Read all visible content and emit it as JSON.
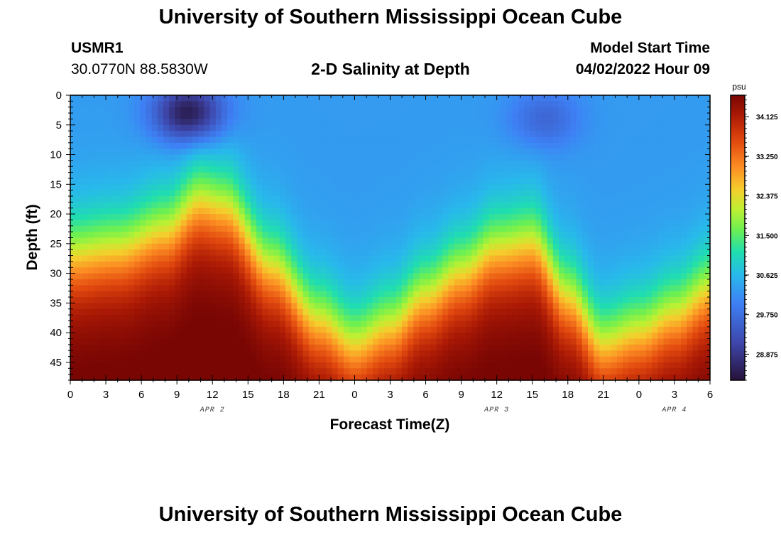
{
  "header": {
    "main_title": "University of Southern Mississippi Ocean Cube",
    "station_id": "USMR1",
    "station_coords": "30.0770N  88.5830W",
    "subtitle": "2-D Salinity at Depth",
    "model_start_label": "Model Start Time",
    "model_start_value": "04/02/2022 Hour 09"
  },
  "footer": {
    "title": "University of Southern Mississippi Ocean Cube"
  },
  "chart_data": {
    "type": "heatmap",
    "title": "2-D Salinity at Depth",
    "xlabel": "Forecast Time(Z)",
    "ylabel": "Depth (ft)",
    "x_range_hours": [
      0,
      54
    ],
    "y_range_ft": [
      0,
      48
    ],
    "y_inverted": true,
    "x_ticks": [
      {
        "hour": 0,
        "label": "0"
      },
      {
        "hour": 3,
        "label": "3"
      },
      {
        "hour": 6,
        "label": "6"
      },
      {
        "hour": 9,
        "label": "9"
      },
      {
        "hour": 12,
        "label": "12"
      },
      {
        "hour": 15,
        "label": "15"
      },
      {
        "hour": 18,
        "label": "18"
      },
      {
        "hour": 21,
        "label": "21"
      },
      {
        "hour": 24,
        "label": "0"
      },
      {
        "hour": 27,
        "label": "3"
      },
      {
        "hour": 30,
        "label": "6"
      },
      {
        "hour": 33,
        "label": "9"
      },
      {
        "hour": 36,
        "label": "12"
      },
      {
        "hour": 39,
        "label": "15"
      },
      {
        "hour": 42,
        "label": "18"
      },
      {
        "hour": 45,
        "label": "21"
      },
      {
        "hour": 48,
        "label": "0"
      },
      {
        "hour": 51,
        "label": "3"
      },
      {
        "hour": 54,
        "label": "6"
      }
    ],
    "date_labels": [
      {
        "hour": 12,
        "label": "APR 2"
      },
      {
        "hour": 36,
        "label": "APR 3"
      },
      {
        "hour": 51,
        "label": "APR 4"
      }
    ],
    "y_ticks": [
      0,
      5,
      10,
      15,
      20,
      25,
      30,
      35,
      40,
      45
    ],
    "colorbar": {
      "unit": "psu",
      "range": [
        28.3,
        34.6
      ],
      "tick_values": [
        28.875,
        29.75,
        30.625,
        31.5,
        32.375,
        33.25,
        34.125
      ],
      "tick_labels": [
        "28.875",
        "29.750",
        "30.625",
        "31.500",
        "32.375",
        "33.250",
        "34.125"
      ]
    },
    "halocline_depth_ft": [
      {
        "hour": 0,
        "depth": 27
      },
      {
        "hour": 4,
        "depth": 26
      },
      {
        "hour": 8,
        "depth": 23
      },
      {
        "hour": 11,
        "depth": 18
      },
      {
        "hour": 13,
        "depth": 19
      },
      {
        "hour": 17,
        "depth": 29
      },
      {
        "hour": 21,
        "depth": 38
      },
      {
        "hour": 24,
        "depth": 42
      },
      {
        "hour": 27,
        "depth": 39
      },
      {
        "hour": 30,
        "depth": 34
      },
      {
        "hour": 33,
        "depth": 30
      },
      {
        "hour": 36,
        "depth": 26
      },
      {
        "hour": 39,
        "depth": 25
      },
      {
        "hour": 42,
        "depth": 34
      },
      {
        "hour": 45,
        "depth": 42
      },
      {
        "hour": 48,
        "depth": 40
      },
      {
        "hour": 51,
        "depth": 37
      },
      {
        "hour": 54,
        "depth": 33
      }
    ],
    "surface_fresh_cores": [
      {
        "hour": 10,
        "depth": 3,
        "min_salinity": 28.4
      },
      {
        "hour": 40,
        "depth": 4,
        "min_salinity": 29.6
      }
    ],
    "surface_salinity_psu": 30.3,
    "bottom_max_salinity_psu": 34.5
  }
}
